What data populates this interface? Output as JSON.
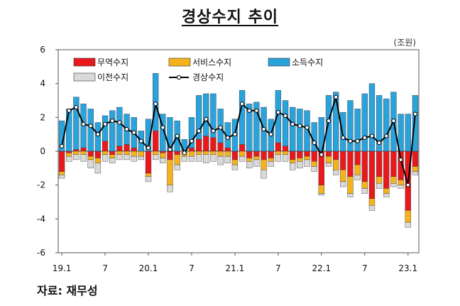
{
  "chart_data": {
    "type": "bar",
    "title": "경상수지 추이",
    "unit": "(조원)",
    "source": "자료:  재무성",
    "ylim": [
      -6,
      6
    ],
    "yticks": [
      6,
      4,
      2,
      0,
      -2,
      -4,
      -6
    ],
    "x_tick_labels": [
      {
        "index": 0,
        "label": "19.1"
      },
      {
        "index": 6,
        "label": "7"
      },
      {
        "index": 12,
        "label": "20.1"
      },
      {
        "index": 18,
        "label": "7"
      },
      {
        "index": 24,
        "label": "21.1"
      },
      {
        "index": 30,
        "label": "7"
      },
      {
        "index": 36,
        "label": "22.1"
      },
      {
        "index": 42,
        "label": "7"
      },
      {
        "index": 48,
        "label": "23.1"
      }
    ],
    "grid": false,
    "legend_position": "top-left",
    "colors": {
      "trade": "#e8191d",
      "services": "#f5b21c",
      "income": "#2aa3dc",
      "transfer": "#d9d9d9",
      "current": "#000000"
    },
    "series": [
      {
        "name": "무역수지",
        "key": "trade",
        "values": [
          -1.2,
          -0.1,
          0.1,
          0.2,
          -0.3,
          -0.4,
          0.6,
          -0.2,
          0.3,
          0.4,
          0.2,
          0.0,
          -1.3,
          1.2,
          -0.1,
          -0.5,
          -0.2,
          0.0,
          0.2,
          0.7,
          0.9,
          0.8,
          0.5,
          0.2,
          -0.5,
          0.4,
          -0.4,
          -0.3,
          -0.5,
          -0.4,
          0.5,
          0.3,
          -0.5,
          -0.4,
          -0.3,
          -0.6,
          -2.0,
          -0.3,
          -0.5,
          -1.1,
          -1.5,
          -0.8,
          -1.8,
          -2.8,
          -1.5,
          -2.2,
          -1.5,
          -1.7,
          -3.5,
          -0.9
        ]
      },
      {
        "name": "서비스수지",
        "key": "services",
        "values": [
          -0.2,
          -0.2,
          -0.2,
          -0.2,
          -0.2,
          -0.3,
          -0.2,
          -0.2,
          -0.2,
          -0.2,
          -0.3,
          -0.3,
          -0.2,
          -0.2,
          -0.3,
          -1.5,
          -0.6,
          -0.3,
          -0.3,
          -0.2,
          -0.2,
          -0.2,
          -0.3,
          -0.3,
          -0.3,
          -0.3,
          -0.2,
          -0.2,
          -0.6,
          -0.2,
          -0.2,
          -0.2,
          -0.2,
          -0.2,
          -0.2,
          -0.3,
          -0.5,
          -0.4,
          -0.6,
          -0.7,
          -1.0,
          -0.6,
          -0.4,
          -0.4,
          -0.4,
          -0.3,
          -0.4,
          -0.3,
          -0.7,
          -0.3
        ]
      },
      {
        "name": "소득수지",
        "key": "income",
        "values": [
          1.8,
          2.5,
          3.1,
          2.6,
          2.5,
          1.7,
          1.5,
          2.4,
          2.3,
          1.8,
          1.8,
          1.2,
          1.9,
          3.4,
          2.2,
          2.0,
          1.8,
          0.7,
          1.8,
          2.6,
          2.5,
          2.6,
          2.0,
          1.5,
          1.9,
          3.2,
          2.8,
          2.9,
          2.6,
          1.9,
          3.1,
          2.7,
          2.6,
          2.5,
          2.4,
          1.7,
          2.0,
          3.3,
          3.5,
          2.3,
          3.0,
          2.5,
          3.4,
          4.0,
          3.3,
          3.1,
          3.5,
          2.2,
          2.2,
          3.3
        ]
      },
      {
        "name": "이전수지",
        "key": "transfer",
        "values": [
          -0.2,
          -0.3,
          -0.3,
          -0.4,
          -0.5,
          -0.6,
          -0.4,
          -0.3,
          -0.3,
          -0.3,
          -0.3,
          -0.2,
          -0.3,
          -0.3,
          -0.3,
          -0.4,
          -0.3,
          -0.3,
          -0.3,
          -0.4,
          -0.5,
          -0.4,
          -0.5,
          -0.4,
          -0.3,
          -0.3,
          -0.4,
          -0.4,
          -0.5,
          -0.3,
          -0.4,
          -0.4,
          -0.4,
          -0.4,
          -0.4,
          -0.3,
          -0.1,
          -0.2,
          -0.3,
          -0.3,
          -0.2,
          -0.3,
          -0.3,
          -0.3,
          -0.3,
          -0.2,
          -0.2,
          -0.2,
          -0.3,
          -0.2
        ]
      },
      {
        "name": "경상수지",
        "key": "current",
        "values": [
          0.3,
          2.4,
          2.6,
          1.6,
          1.5,
          1.0,
          1.6,
          1.8,
          1.7,
          1.3,
          1.1,
          0.6,
          0.2,
          2.8,
          1.4,
          0.1,
          0.9,
          -0.1,
          0.6,
          1.2,
          1.9,
          1.2,
          1.4,
          0.8,
          1.0,
          2.8,
          2.4,
          2.4,
          1.3,
          1.0,
          2.3,
          2.1,
          1.6,
          1.5,
          1.4,
          0.5,
          -0.2,
          1.8,
          3.2,
          0.8,
          0.6,
          0.6,
          0.8,
          0.9,
          0.5,
          0.9,
          1.8,
          -0.5,
          -2.0,
          2.2
        ]
      }
    ]
  }
}
